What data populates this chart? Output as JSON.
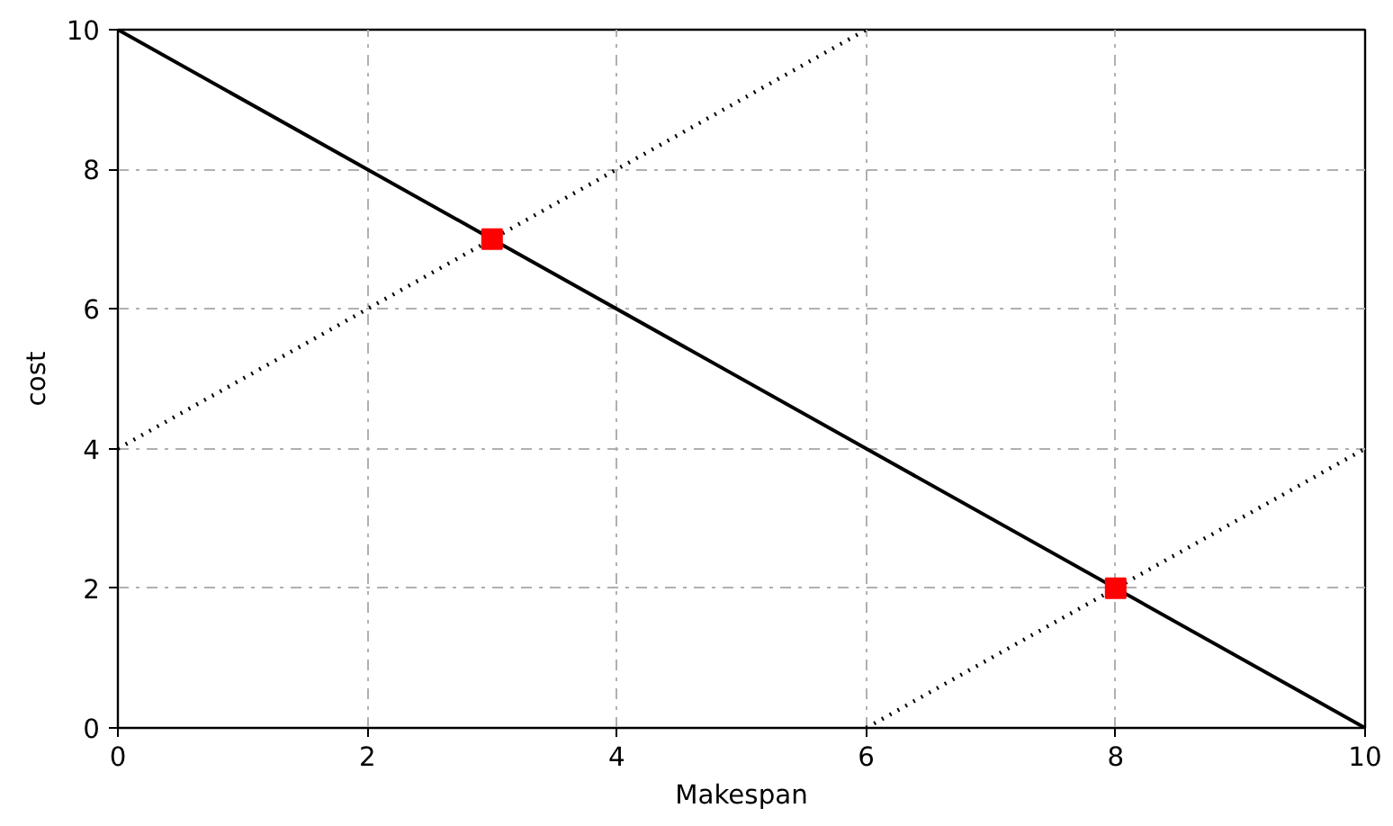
{
  "chart_data": {
    "type": "line",
    "xlabel": "Makespan",
    "ylabel": "cost",
    "xlim": [
      0,
      10
    ],
    "ylim": [
      0,
      10
    ],
    "xticks": [
      0,
      2,
      4,
      6,
      8,
      10
    ],
    "yticks": [
      0,
      2,
      4,
      6,
      8,
      10
    ],
    "grid": true,
    "series": [
      {
        "color": "#000000",
        "line_style": "solid",
        "marker": "none",
        "x": [
          0,
          10
        ],
        "values": [
          10,
          0
        ]
      },
      {
        "type": "line",
        "color": "#000000",
        "line_style": "dotted",
        "marker": "none",
        "x": [
          0,
          6
        ],
        "values": [
          4,
          10
        ]
      },
      {
        "type": "line",
        "color": "#000000",
        "line_style": "dotted",
        "marker": "none",
        "x": [
          6,
          10
        ],
        "values": [
          0,
          4
        ]
      },
      {
        "type": "scatter",
        "color": "#ff0000",
        "marker": "square",
        "x": [
          3,
          8
        ],
        "values": [
          7,
          2
        ]
      }
    ]
  }
}
